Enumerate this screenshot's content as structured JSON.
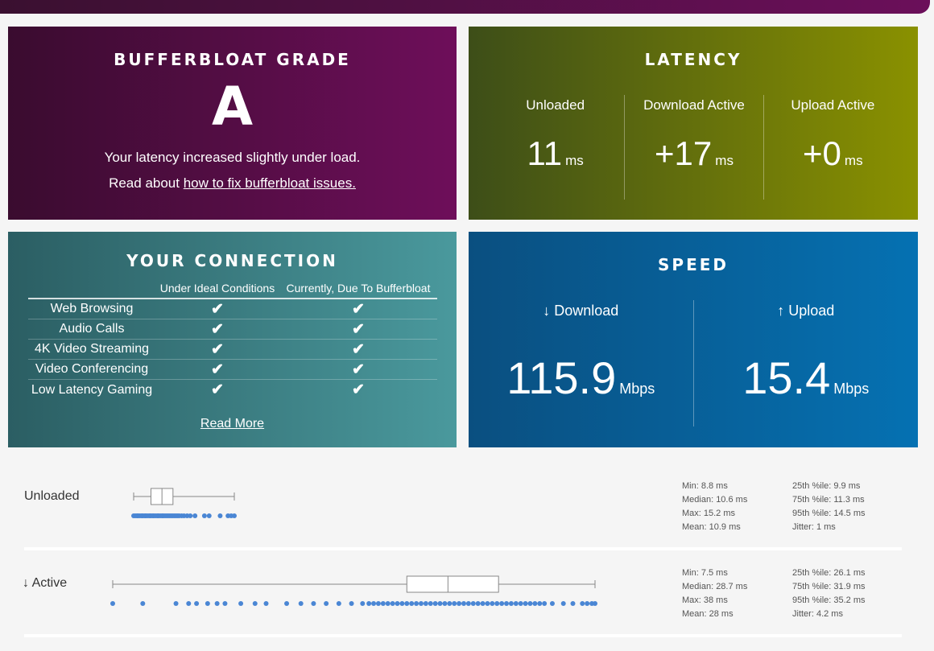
{
  "grade": {
    "title": "BUFFERBLOAT GRADE",
    "letter": "A",
    "message": "Your latency increased slightly under load.",
    "link_prefix": "Read about ",
    "link_text": "how to fix bufferbloat issues."
  },
  "latency": {
    "title": "LATENCY",
    "cols": [
      {
        "label": "Unloaded",
        "value": "11",
        "unit": "ms"
      },
      {
        "label": "Download Active",
        "value": "+17",
        "unit": "ms"
      },
      {
        "label": "Upload Active",
        "value": "+0",
        "unit": "ms"
      }
    ]
  },
  "connection": {
    "title": "YOUR CONNECTION",
    "col_ideal": "Under Ideal Conditions",
    "col_current": "Currently, Due To Bufferbloat",
    "rows": [
      {
        "name": "Web Browsing",
        "ideal": "✔",
        "current": "✔"
      },
      {
        "name": "Audio Calls",
        "ideal": "✔",
        "current": "✔"
      },
      {
        "name": "4K Video Streaming",
        "ideal": "✔",
        "current": "✔"
      },
      {
        "name": "Video Conferencing",
        "ideal": "✔",
        "current": "✔"
      },
      {
        "name": "Low Latency Gaming",
        "ideal": "✔",
        "current": "✔"
      }
    ],
    "read_more": "Read More"
  },
  "speed": {
    "title": "SPEED",
    "download_label": "↓ Download",
    "download_value": "115.9",
    "download_unit": "Mbps",
    "upload_label": "↑ Upload",
    "upload_value": "15.4",
    "upload_unit": "Mbps"
  },
  "stats": {
    "unloaded": {
      "title": "Unloaded",
      "box": {
        "min": 8.8,
        "q1": 9.9,
        "median": 10.6,
        "q3": 11.3,
        "max": 15.2
      },
      "points": [
        8.8,
        8.9,
        9.0,
        9.05,
        9.1,
        9.2,
        9.3,
        9.35,
        9.4,
        9.5,
        9.55,
        9.6,
        9.7,
        9.8,
        9.85,
        9.9,
        10.0,
        10.05,
        10.1,
        10.2,
        10.3,
        10.35,
        10.4,
        10.5,
        10.6,
        10.65,
        10.7,
        10.8,
        10.9,
        11.0,
        11.1,
        11.2,
        11.3,
        11.4,
        11.5,
        11.6,
        11.7,
        11.85,
        12.0,
        12.2,
        12.4,
        12.7,
        13.3,
        13.6,
        14.3,
        14.8,
        15.0,
        15.2
      ],
      "lines": [
        [
          "Min: 8.8 ms",
          "25th %ile: 9.9 ms"
        ],
        [
          "Median: 10.6 ms",
          "75th %ile: 11.3 ms"
        ],
        [
          "Max: 15.2 ms",
          "95th %ile: 14.5 ms"
        ],
        [
          "Mean: 10.9 ms",
          "Jitter: 1 ms"
        ]
      ]
    },
    "active": {
      "title": "↓ Active",
      "box": {
        "min": 7.5,
        "q1": 26.1,
        "median": 28.7,
        "q3": 31.9,
        "max": 38
      },
      "points": [
        7.5,
        9.4,
        11.5,
        12.3,
        12.8,
        13.5,
        14.1,
        14.6,
        15.6,
        16.5,
        17.2,
        18.5,
        19.4,
        20.2,
        21.0,
        21.8,
        22.6,
        23.3,
        23.7,
        24.0,
        24.3,
        24.6,
        24.9,
        25.2,
        25.5,
        25.8,
        26.1,
        26.4,
        26.7,
        27.0,
        27.3,
        27.6,
        27.9,
        28.2,
        28.5,
        28.8,
        29.1,
        29.4,
        29.7,
        30.0,
        30.3,
        30.6,
        30.9,
        31.2,
        31.5,
        31.8,
        32.1,
        32.4,
        32.7,
        33.0,
        33.3,
        33.6,
        33.9,
        34.2,
        34.5,
        34.8,
        35.3,
        36.0,
        36.6,
        37.2,
        37.5,
        37.8,
        38.0
      ],
      "lines": [
        [
          "Min: 7.5 ms",
          "25th %ile: 26.1 ms"
        ],
        [
          "Median: 28.7 ms",
          "75th %ile: 31.9 ms"
        ],
        [
          "Max: 38 ms",
          "95th %ile: 35.2 ms"
        ],
        [
          "Mean: 28 ms",
          "Jitter: 4.2 ms"
        ]
      ]
    },
    "colors": {
      "dots": "#4a86d4",
      "box": "#888888"
    }
  }
}
